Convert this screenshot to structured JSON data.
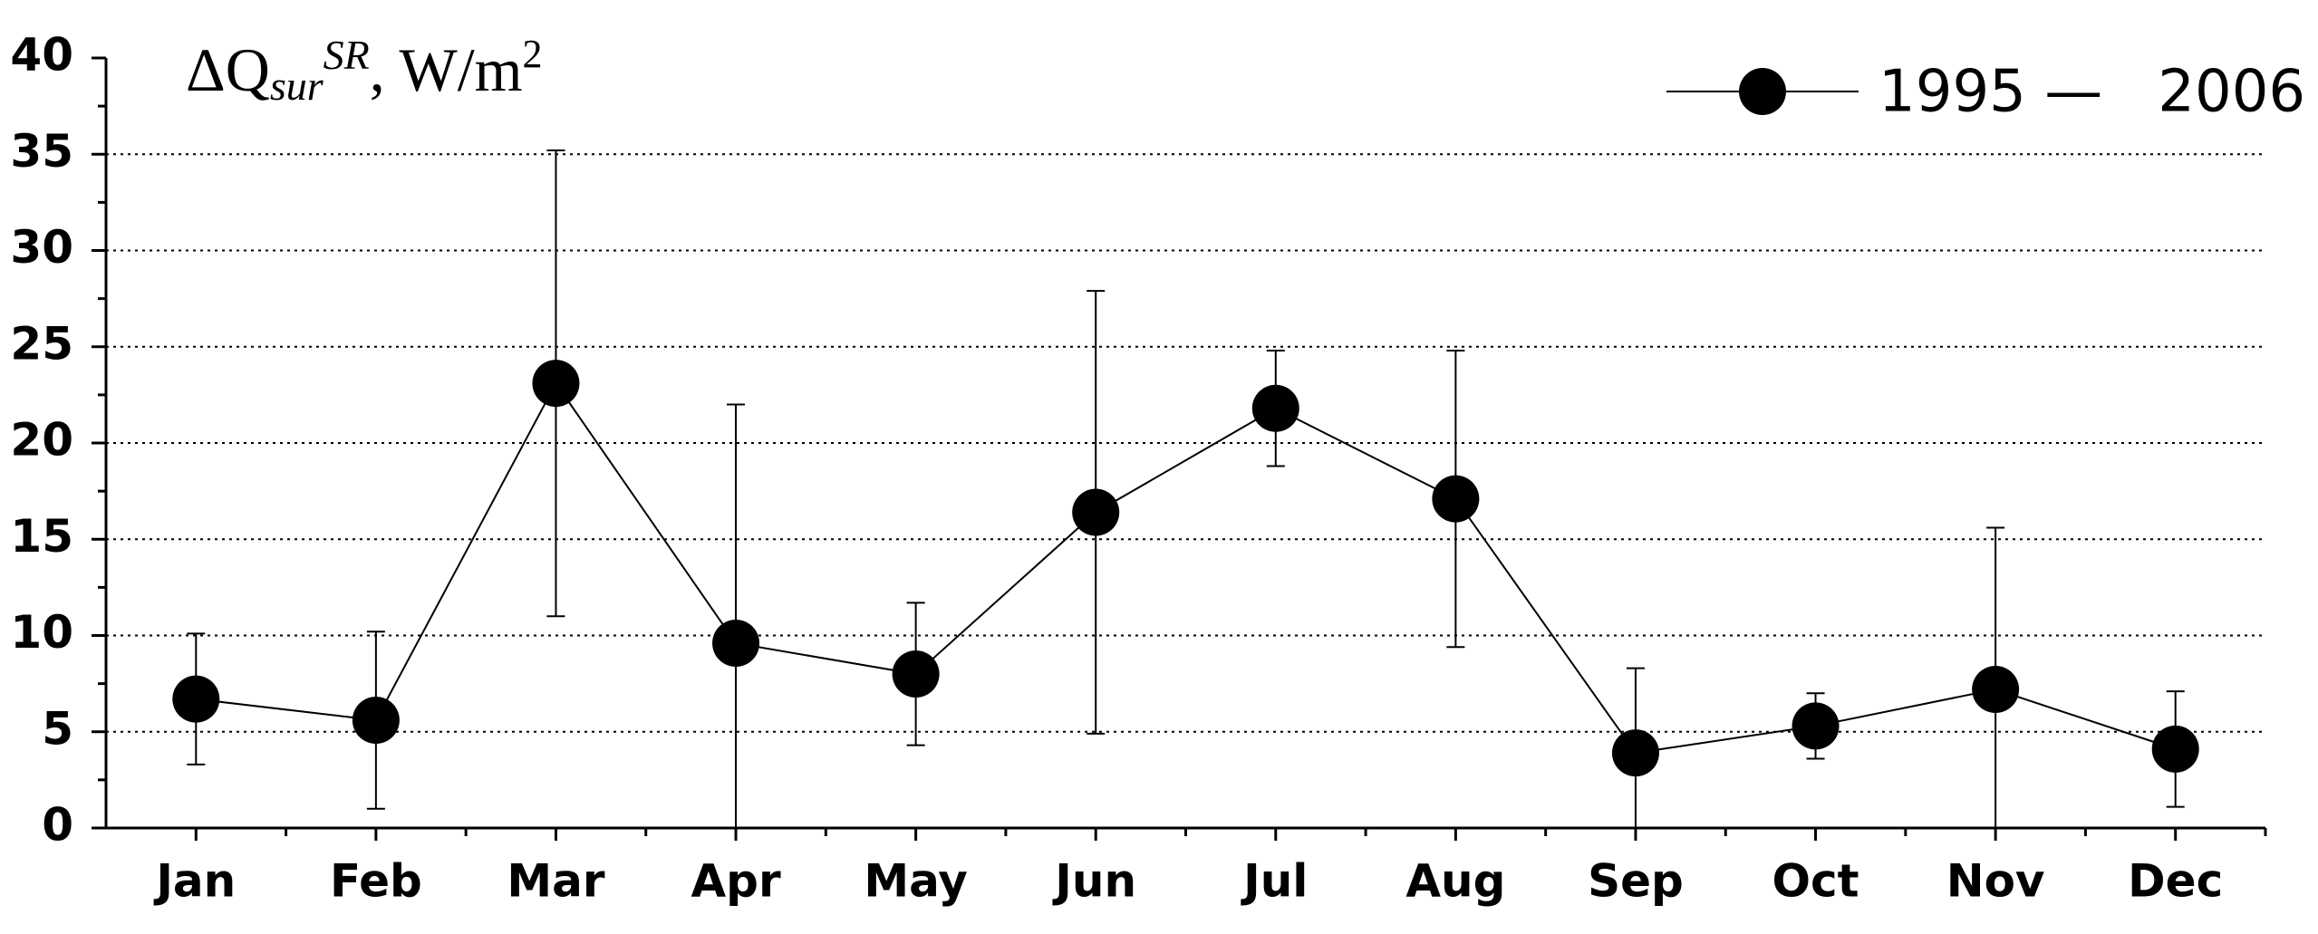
{
  "chart_data": {
    "type": "line",
    "title": [
      "ΔQ",
      "sur",
      "SR",
      ", W/m",
      "2"
    ],
    "categories": [
      "Jan",
      "Feb",
      "Mar",
      "Apr",
      "May",
      "Jun",
      "Jul",
      "Aug",
      "Sep",
      "Oct",
      "Nov",
      "Dec"
    ],
    "series": [
      {
        "name": "1995 —   2006",
        "color": "#000000",
        "values": [
          6.7,
          5.6,
          23.1,
          9.6,
          8.0,
          16.4,
          21.8,
          17.1,
          3.9,
          5.3,
          7.2,
          4.1
        ],
        "errors": [
          3.4,
          4.6,
          12.1,
          12.4,
          3.7,
          11.5,
          3.0,
          7.7,
          4.4,
          1.7,
          8.4,
          3.0
        ]
      }
    ],
    "ylim": [
      0,
      40
    ],
    "yticks": [
      0,
      5,
      10,
      15,
      20,
      25,
      30,
      35,
      40
    ],
    "grid": true,
    "legend": "top-right"
  }
}
